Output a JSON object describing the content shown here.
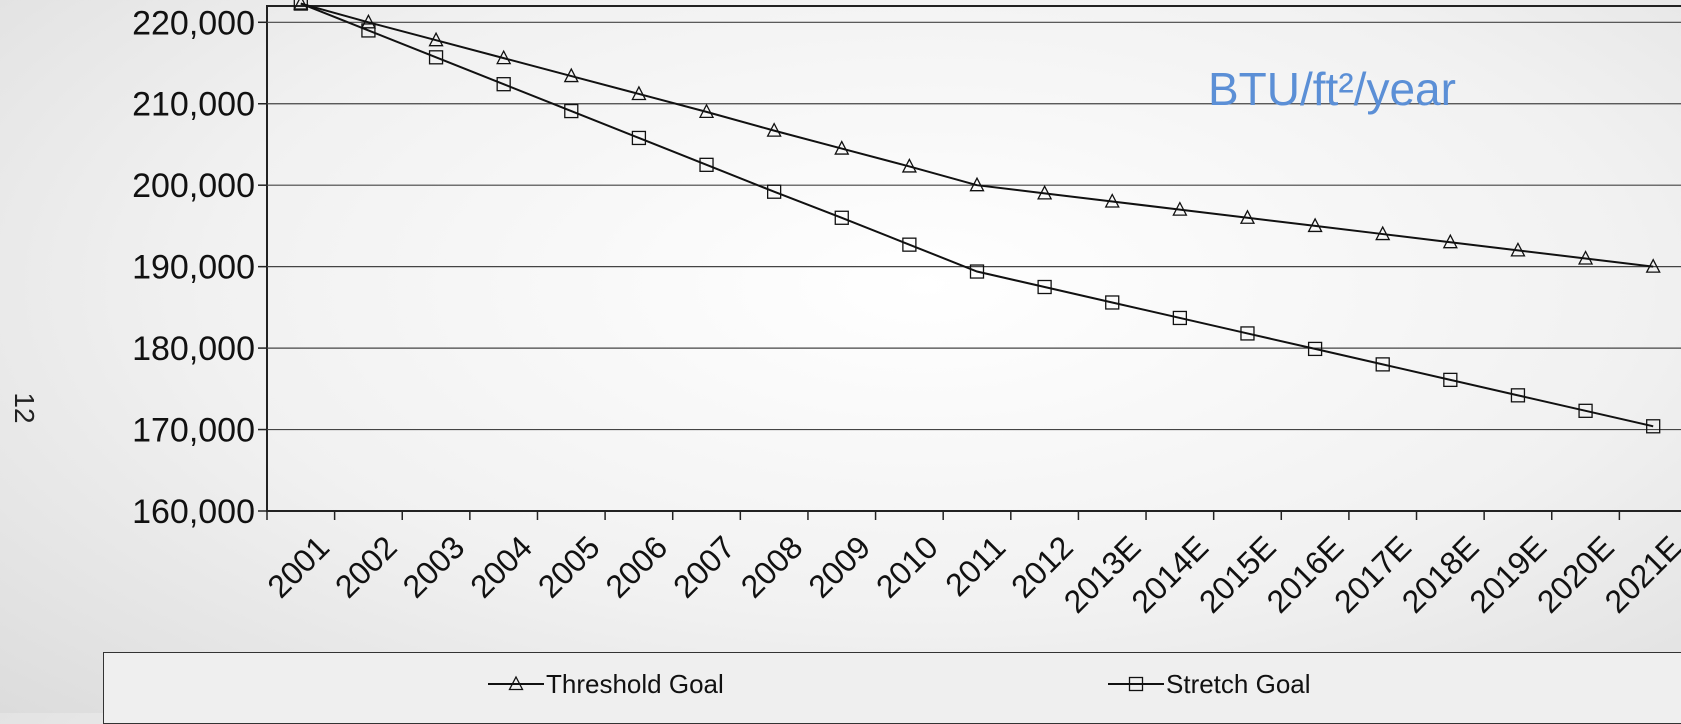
{
  "slide_number": "12",
  "chart_data": {
    "type": "line",
    "annotation": "BTU/ft²/year",
    "annotation_color": "#5b8fd6",
    "categories": [
      "2001",
      "2002",
      "2003",
      "2004",
      "2005",
      "2006",
      "2007",
      "2008",
      "2009",
      "2010",
      "2011",
      "2012",
      "2013E",
      "2014E",
      "2015E",
      "2016E",
      "2017E",
      "2018E",
      "2019E",
      "2020E",
      "2021E"
    ],
    "ylim": [
      160000,
      222000
    ],
    "yticks": [
      160000,
      170000,
      180000,
      190000,
      200000,
      210000,
      220000
    ],
    "ytick_labels": [
      "160,000",
      "170,000",
      "180,000",
      "190,000",
      "200,000",
      "210,000",
      "220,000"
    ],
    "grid": true,
    "legend": "bottom",
    "series": [
      {
        "name": "Threshold Goal",
        "marker": "triangle-icon",
        "values": [
          222300,
          220000,
          217800,
          215600,
          213400,
          211200,
          209000,
          206700,
          204500,
          202300,
          200000,
          199000,
          198000,
          197000,
          196000,
          195000,
          194000,
          193000,
          192000,
          191000,
          190000
        ]
      },
      {
        "name": "Stretch Goal",
        "marker": "square-icon",
        "values": [
          222300,
          219000,
          215700,
          212400,
          209100,
          205800,
          202500,
          199200,
          196000,
          192700,
          189400,
          187500,
          185600,
          183700,
          181800,
          179900,
          178000,
          176100,
          174200,
          172300,
          170400
        ]
      }
    ]
  }
}
